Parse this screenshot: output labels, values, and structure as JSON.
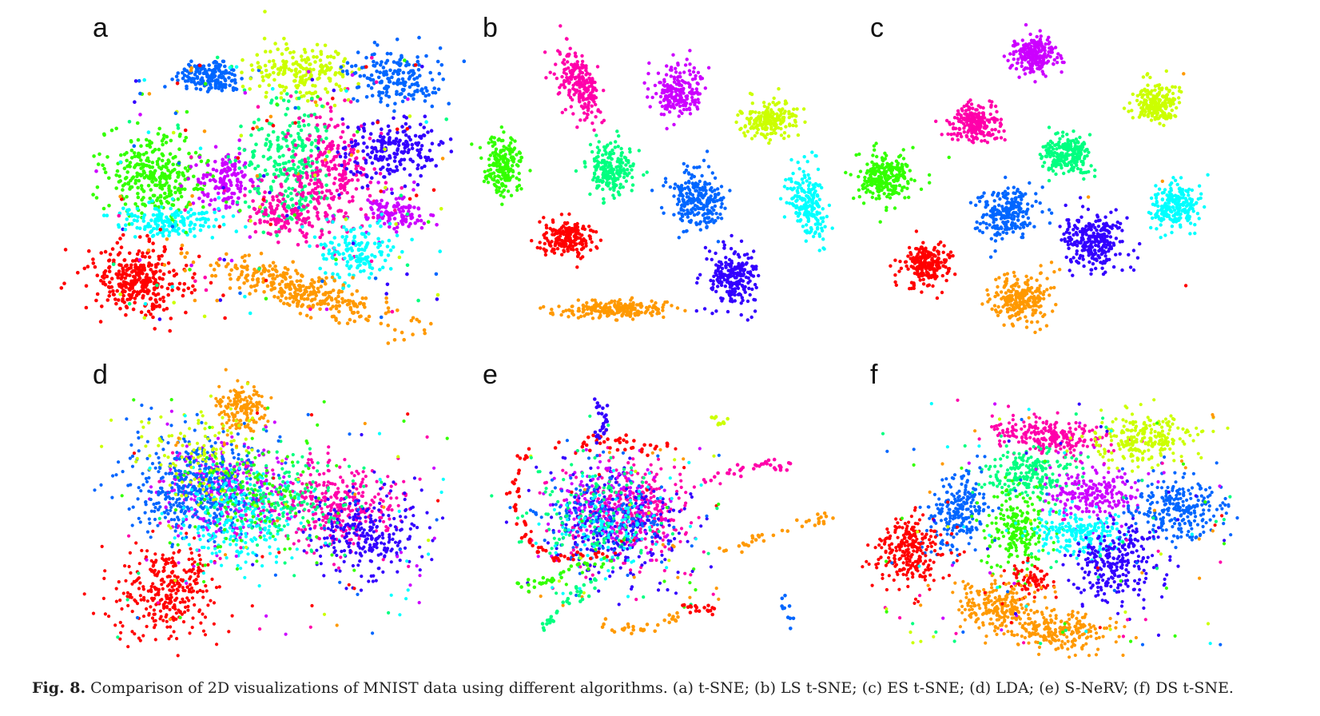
{
  "figure": {
    "caption_label": "Fig. 8.",
    "caption_text": "Comparison of 2D visualizations of MNIST data using different algorithms. (a) t-SNE; (b) LS t-SNE; (c) ES t-SNE; (d) LDA; (e) S-NeRV; (f) DS t-SNE.",
    "class_colors": [
      "#ff0000",
      "#ff9900",
      "#ccff00",
      "#00ff80",
      "#33ff00",
      "#0066ff",
      "#00ffff",
      "#3300ff",
      "#cc00ff",
      "#ff00aa"
    ],
    "panels": [
      {
        "label": "a"
      },
      {
        "label": "b"
      },
      {
        "label": "c"
      },
      {
        "label": "d"
      },
      {
        "label": "e"
      },
      {
        "label": "f"
      }
    ]
  }
}
